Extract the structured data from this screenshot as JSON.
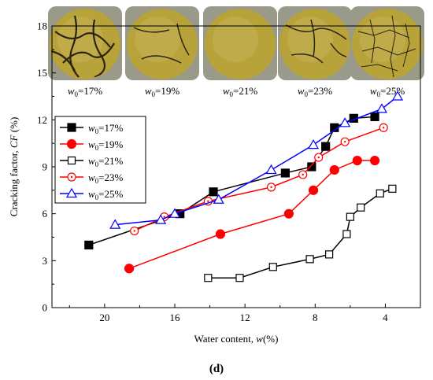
{
  "chart_data": {
    "type": "line",
    "title": "",
    "panel_label": "(d)",
    "xlabel_main": "Water content, ",
    "xlabel_var": "w",
    "xlabel_unit": "(%)",
    "ylabel_main": "Cracking factor, ",
    "ylabel_var": "CF",
    "ylabel_unit": " (%)",
    "xlim": [
      23,
      2
    ],
    "ylim": [
      0,
      18
    ],
    "x_reversed": true,
    "xticks": [
      20,
      16,
      12,
      8,
      4
    ],
    "yticks": [
      0,
      3,
      6,
      9,
      12,
      15,
      18
    ],
    "xtick_labels": [
      "20",
      "16",
      "12",
      "8",
      "4"
    ],
    "ytick_labels": [
      "0",
      "3",
      "6",
      "9",
      "12",
      "15",
      "18"
    ],
    "legend_position": "left",
    "series": [
      {
        "name_var": "w",
        "name_sub": "0",
        "name_value": "=17%",
        "color": "#000000",
        "marker": "filled-square",
        "x": [
          20.9,
          15.7,
          13.8,
          9.7,
          8.2,
          7.4,
          6.9,
          5.8,
          4.6
        ],
        "y": [
          4.0,
          6.0,
          7.4,
          8.6,
          9.0,
          10.3,
          11.5,
          12.1,
          12.2
        ]
      },
      {
        "name_var": "w",
        "name_sub": "0",
        "name_value": "=19%",
        "color": "#ff0000",
        "marker": "filled-circle",
        "x": [
          18.6,
          13.4,
          9.5,
          8.1,
          6.9,
          5.6,
          4.6
        ],
        "y": [
          2.5,
          4.7,
          6.0,
          7.5,
          8.8,
          9.4,
          9.4
        ]
      },
      {
        "name_var": "w",
        "name_sub": "0",
        "name_value": "=21%",
        "color": "#000000",
        "marker": "open-square",
        "x": [
          14.1,
          12.3,
          10.4,
          8.3,
          7.2,
          6.2,
          6.0,
          5.4,
          4.3,
          3.6
        ],
        "y": [
          1.9,
          1.9,
          2.6,
          3.1,
          3.4,
          4.7,
          5.8,
          6.4,
          7.3,
          7.6
        ]
      },
      {
        "name_var": "w",
        "name_sub": "0",
        "name_value": "=23%",
        "color": "#ff0000",
        "marker": "open-circle",
        "x": [
          18.3,
          16.6,
          14.1,
          10.5,
          8.7,
          7.8,
          6.3,
          4.1
        ],
        "y": [
          4.9,
          5.8,
          6.8,
          7.7,
          8.5,
          9.6,
          10.6,
          11.5
        ]
      },
      {
        "name_var": "w",
        "name_sub": "0",
        "name_value": "=25%",
        "color": "#0000ff",
        "marker": "open-triangle",
        "x": [
          19.4,
          16.8,
          16.0,
          13.5,
          10.5,
          8.1,
          6.3,
          4.2,
          3.3
        ],
        "y": [
          5.3,
          5.6,
          6.0,
          6.9,
          8.8,
          10.4,
          11.8,
          12.7,
          13.5
        ]
      }
    ],
    "photos": [
      {
        "label_var": "w",
        "label_sub": "0",
        "label_value": "=17%",
        "crack": "heavy"
      },
      {
        "label_var": "w",
        "label_sub": "0",
        "label_value": "=19%",
        "crack": "light"
      },
      {
        "label_var": "w",
        "label_sub": "0",
        "label_value": "=21%",
        "crack": "none"
      },
      {
        "label_var": "w",
        "label_sub": "0",
        "label_value": "=23%",
        "crack": "medium"
      },
      {
        "label_var": "w",
        "label_sub": "0",
        "label_value": "=25%",
        "crack": "fine"
      }
    ],
    "photo_colors": {
      "soil": "#b8a23a",
      "soil_light": "#c7b257",
      "crack": "#2a2510",
      "rim": "#9a9a8a"
    }
  }
}
